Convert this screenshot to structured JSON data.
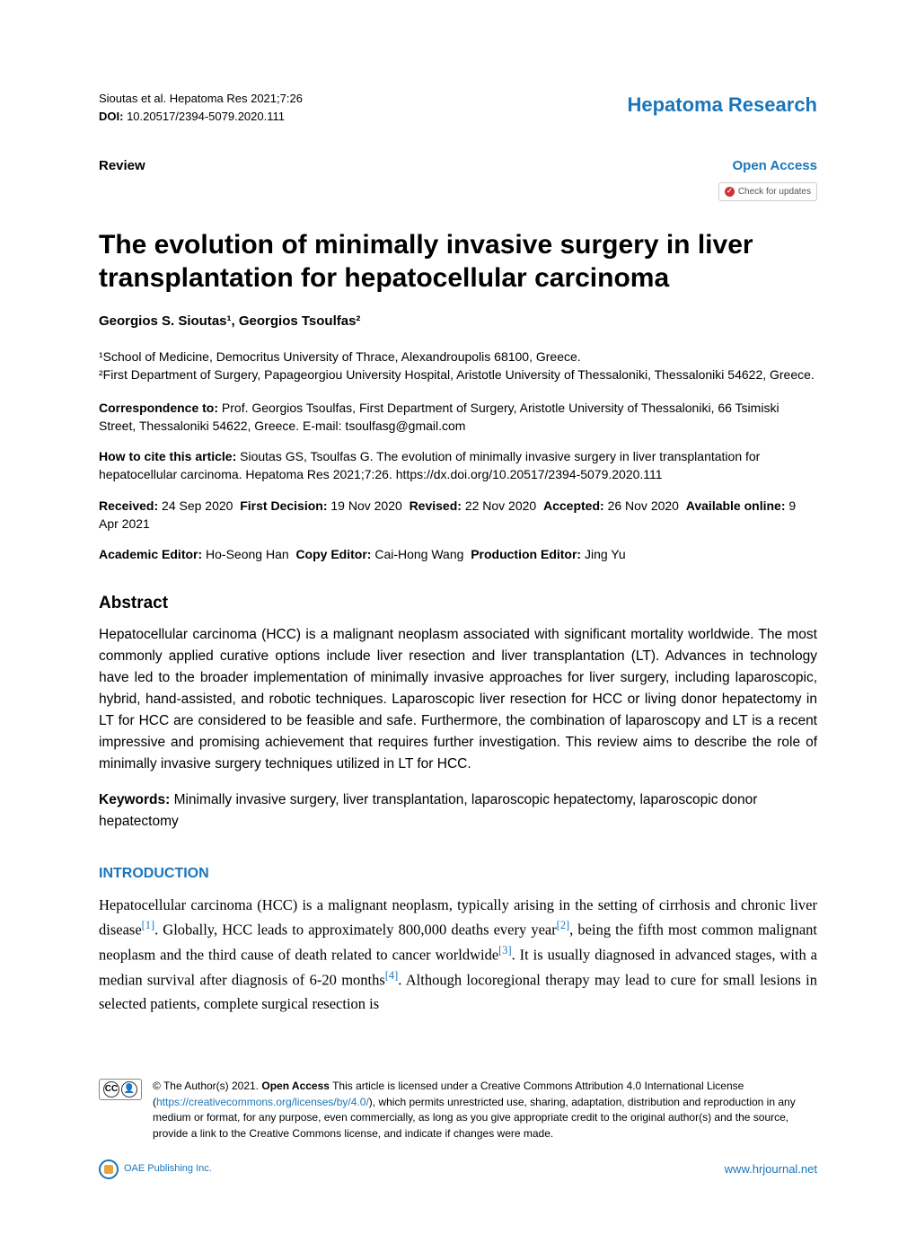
{
  "colors": {
    "accent": "#1a75bb",
    "text": "#000000",
    "background": "#ffffff",
    "border_light": "#cccccc",
    "attribution_orange": "#e8a33d"
  },
  "header": {
    "citation": "Sioutas et al. Hepatoma Res 2021;7:26",
    "doi_label": "DOI:",
    "doi": "10.20517/2394-5079.2020.111",
    "journal": "Hepatoma Research"
  },
  "article_type": "Review",
  "open_access": "Open Access",
  "check_updates": "Check for updates",
  "title": "The evolution of minimally invasive surgery in liver transplantation for hepatocellular carcinoma",
  "authors": "Georgios S. Sioutas¹, Georgios Tsoulfas²",
  "affiliations": [
    "¹School of Medicine, Democritus University of Thrace, Alexandroupolis 68100, Greece.",
    "²First Department of Surgery, Papageorgiou University Hospital, Aristotle University of Thessaloniki, Thessaloniki 54622, Greece."
  ],
  "correspondence": {
    "label": "Correspondence to:",
    "text": "Prof. Georgios Tsoulfas, First Department of Surgery, Aristotle University of Thessaloniki, 66 Tsimiski Street, Thessaloniki 54622, Greece. E-mail: tsoulfasg@gmail.com"
  },
  "how_to_cite": {
    "label": "How to cite this article:",
    "text": "Sioutas GS, Tsoulfas G. The evolution of minimally invasive surgery in liver transplantation for hepatocellular carcinoma. Hepatoma Res 2021;7:26. https://dx.doi.org/10.20517/2394-5079.2020.111"
  },
  "dates": {
    "received_label": "Received:",
    "received": "24 Sep 2020",
    "first_decision_label": "First Decision:",
    "first_decision": "19 Nov 2020",
    "revised_label": "Revised:",
    "revised": "22 Nov 2020",
    "accepted_label": "Accepted:",
    "accepted": "26 Nov 2020",
    "online_label": "Available online:",
    "online": "9 Apr 2021"
  },
  "editors": {
    "academic_label": "Academic Editor:",
    "academic": "Ho-Seong Han",
    "copy_label": "Copy Editor:",
    "copy": "Cai-Hong Wang",
    "production_label": "Production Editor:",
    "production": "Jing Yu"
  },
  "abstract": {
    "heading": "Abstract",
    "text": "Hepatocellular carcinoma (HCC) is a malignant neoplasm associated with significant mortality worldwide. The most commonly applied curative options include liver resection and liver transplantation (LT). Advances in technology have led to the broader implementation of minimally invasive approaches for liver surgery, including laparoscopic, hybrid, hand-assisted, and robotic techniques. Laparoscopic liver resection for HCC or living donor hepatectomy in LT for HCC are considered to be feasible and safe. Furthermore, the combination of laparoscopy and LT is a recent impressive and promising achievement that requires further investigation. This review aims to describe the role of minimally invasive surgery techniques utilized in LT for HCC."
  },
  "keywords": {
    "label": "Keywords:",
    "text": "Minimally invasive surgery, liver transplantation, laparoscopic hepatectomy, laparoscopic donor hepatectomy"
  },
  "introduction": {
    "heading": "INTRODUCTION",
    "pre1": "Hepatocellular carcinoma (HCC) is a malignant neoplasm, typically arising in the setting of cirrhosis and chronic liver disease",
    "ref1": "[1]",
    "pre2": ". Globally, HCC leads to approximately 800,000 deaths every year",
    "ref2": "[2]",
    "pre3": ", being the fifth most common malignant neoplasm and the third cause of death related to cancer worldwide",
    "ref3": "[3]",
    "pre4": ". It is usually diagnosed in advanced stages, with a median survival after diagnosis of 6-20 months",
    "ref4": "[4]",
    "pre5": ". Although locoregional therapy may lead to cure for small lesions in selected patients, complete surgical resection is"
  },
  "license": {
    "cc": "CC",
    "by": "BY",
    "pre": "© The Author(s) 2021. ",
    "open_access_label": "Open Access",
    "mid": " This article is licensed under a Creative Commons Attribution 4.0 International License (",
    "link": "https://creativecommons.org/licenses/by/4.0/",
    "post": "), which permits unrestricted use, sharing, adaptation, distribution and reproduction in any medium or format, for any purpose, even commercially, as long as you give appropriate credit to the original author(s) and the source, provide a link to the Creative Commons license, and indicate if changes were made."
  },
  "publisher": "OAE Publishing Inc.",
  "site_url": "www.hrjournal.net"
}
